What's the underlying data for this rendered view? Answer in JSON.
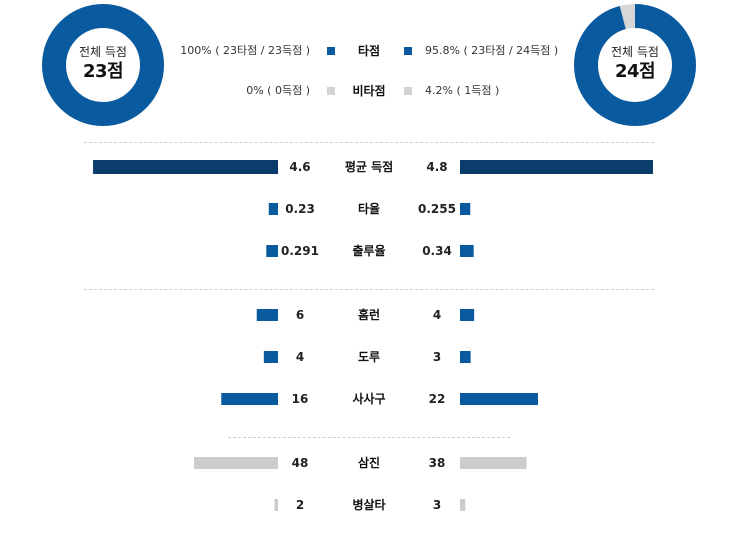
{
  "colors": {
    "primary": "#0a5aa0",
    "dark": "#0a3d6b",
    "gray": "#cccccc"
  },
  "left_team": {
    "total_label": "전체 득점",
    "total_value": "23점"
  },
  "right_team": {
    "total_label": "전체 득점",
    "total_value": "24점"
  },
  "legend": {
    "hit": {
      "label": "타점",
      "left": "100% ( 23타점 / 23득점 )",
      "right": "95.8% ( 23타점 / 24득점 )"
    },
    "nonhit": {
      "label": "비타점",
      "left": "0% ( 0득점 )",
      "right": "4.2% ( 1득점 )"
    }
  },
  "chart_data": {
    "type": "bar",
    "donuts": [
      {
        "side": "left",
        "hit_pct": 100,
        "nonhit_pct": 0
      },
      {
        "side": "right",
        "hit_pct": 95.8,
        "nonhit_pct": 4.2
      }
    ],
    "categories": [
      "평균 득점",
      "타율",
      "출루율",
      "홈런",
      "도루",
      "사사구",
      "삼진",
      "병살타"
    ],
    "left": [
      "4.6",
      "0.23",
      "0.291",
      "6",
      "4",
      "16",
      "48",
      "2"
    ],
    "right": [
      "4.8",
      "0.255",
      "0.34",
      "4",
      "3",
      "22",
      "38",
      "3"
    ],
    "left_values": [
      4.6,
      0.23,
      0.291,
      6,
      4,
      16,
      48,
      2
    ],
    "right_values": [
      4.8,
      0.255,
      0.34,
      4,
      3,
      22,
      38,
      3
    ],
    "colors": [
      "dark",
      "primary",
      "primary",
      "primary",
      "primary",
      "primary",
      "gray",
      "gray"
    ]
  }
}
